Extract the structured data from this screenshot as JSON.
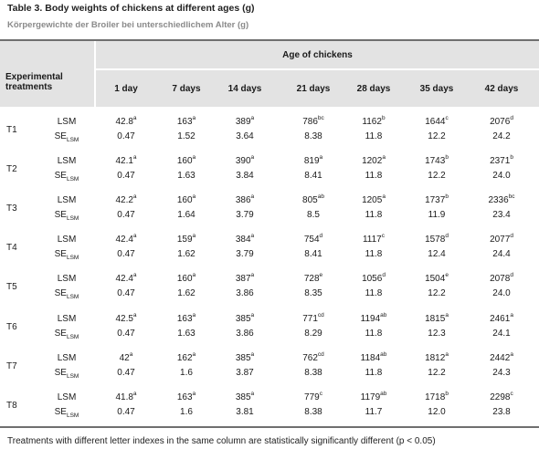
{
  "title": "Table 3. Body weights of chickens at different ages (g)",
  "subtitle": "Körpergewichte der Broiler bei unterschiedlichem Alter (g)",
  "header": {
    "treatments_line1": "Experimental",
    "treatments_line2": "treatments",
    "age_group": "Age of chickens",
    "columns": [
      "1 day",
      "7 days",
      "14 days",
      "21 days",
      "28 days",
      "35 days",
      "42 days"
    ]
  },
  "row_labels": {
    "lsm": "LSM",
    "se_main": "SE",
    "se_sub": "LSM"
  },
  "treatments": [
    {
      "name": "T1",
      "lsm": [
        [
          "42.8",
          "a"
        ],
        [
          "163",
          "a"
        ],
        [
          "389",
          "a"
        ],
        [
          "786",
          "bc"
        ],
        [
          "1162",
          "b"
        ],
        [
          "1644",
          "c"
        ],
        [
          "2076",
          "d"
        ]
      ],
      "se": [
        "0.47",
        "1.52",
        "3.64",
        "8.38",
        "11.8",
        "12.2",
        "24.2"
      ]
    },
    {
      "name": "T2",
      "lsm": [
        [
          "42.1",
          "a"
        ],
        [
          "160",
          "a"
        ],
        [
          "390",
          "a"
        ],
        [
          "819",
          "a"
        ],
        [
          "1202",
          "a"
        ],
        [
          "1743",
          "b"
        ],
        [
          "2371",
          "b"
        ]
      ],
      "se": [
        "0.47",
        "1.63",
        "3.84",
        "8.41",
        "11.8",
        "12.2",
        "24.0"
      ]
    },
    {
      "name": "T3",
      "lsm": [
        [
          "42.2",
          "a"
        ],
        [
          "160",
          "a"
        ],
        [
          "386",
          "a"
        ],
        [
          "805",
          "ab"
        ],
        [
          "1205",
          "a"
        ],
        [
          "1737",
          "b"
        ],
        [
          "2336",
          "bc"
        ]
      ],
      "se": [
        "0.47",
        "1.64",
        "3.79",
        "8.5",
        "11.8",
        "11.9",
        "23.4"
      ]
    },
    {
      "name": "T4",
      "lsm": [
        [
          "42.4",
          "a"
        ],
        [
          "159",
          "a"
        ],
        [
          "384",
          "a"
        ],
        [
          "754",
          "d"
        ],
        [
          "1117",
          "c"
        ],
        [
          "1578",
          "d"
        ],
        [
          "2077",
          "d"
        ]
      ],
      "se": [
        "0.47",
        "1.62",
        "3.79",
        "8.41",
        "11.8",
        "12.4",
        "24.4"
      ]
    },
    {
      "name": "T5",
      "lsm": [
        [
          "42.4",
          "a"
        ],
        [
          "160",
          "a"
        ],
        [
          "387",
          "a"
        ],
        [
          "728",
          "e"
        ],
        [
          "1056",
          "d"
        ],
        [
          "1504",
          "e"
        ],
        [
          "2078",
          "d"
        ]
      ],
      "se": [
        "0.47",
        "1.62",
        "3.86",
        "8.35",
        "11.8",
        "12.2",
        "24.0"
      ]
    },
    {
      "name": "T6",
      "lsm": [
        [
          "42.5",
          "a"
        ],
        [
          "163",
          "a"
        ],
        [
          "385",
          "a"
        ],
        [
          "771",
          "cd"
        ],
        [
          "1194",
          "ab"
        ],
        [
          "1815",
          "a"
        ],
        [
          "2461",
          "a"
        ]
      ],
      "se": [
        "0.47",
        "1.63",
        "3.86",
        "8.29",
        "11.8",
        "12.3",
        "24.1"
      ]
    },
    {
      "name": "T7",
      "lsm": [
        [
          "42",
          "a"
        ],
        [
          "162",
          "a"
        ],
        [
          "385",
          "a"
        ],
        [
          "762",
          "cd"
        ],
        [
          "1184",
          "ab"
        ],
        [
          "1812",
          "a"
        ],
        [
          "2442",
          "a"
        ]
      ],
      "se": [
        "0.47",
        "1.6",
        "3.87",
        "8.38",
        "11.8",
        "12.2",
        "24.3"
      ]
    },
    {
      "name": "T8",
      "lsm": [
        [
          "41.8",
          "a"
        ],
        [
          "163",
          "a"
        ],
        [
          "385",
          "a"
        ],
        [
          "779",
          "c"
        ],
        [
          "1179",
          "ab"
        ],
        [
          "1718",
          "b"
        ],
        [
          "2298",
          "c"
        ]
      ],
      "se": [
        "0.47",
        "1.6",
        "3.81",
        "8.38",
        "11.7",
        "12.0",
        "23.8"
      ]
    }
  ],
  "footer": "Treatments with different letter indexes in the same column are statistically significantly different (p < 0.05)"
}
